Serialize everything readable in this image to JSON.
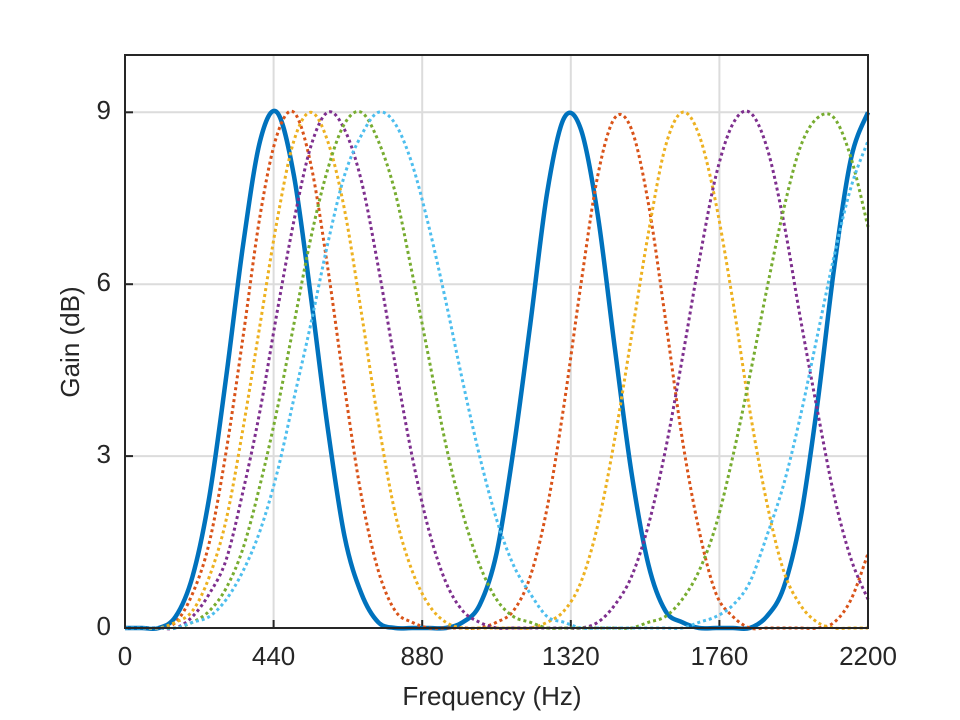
{
  "chart_data": {
    "type": "line",
    "x_label": "Frequency (Hz)",
    "y_label": "Gain (dB)",
    "xlim": [
      0,
      2200
    ],
    "ylim": [
      0,
      10
    ],
    "xticks": [
      0,
      440,
      880,
      1320,
      1760,
      2200
    ],
    "yticks": [
      0,
      3,
      6,
      9
    ],
    "grid": true,
    "x": [
      0,
      50,
      100,
      150,
      200,
      250,
      300,
      350,
      400,
      450,
      500,
      550,
      600,
      650,
      700,
      750,
      800,
      850,
      900,
      950,
      1000,
      1050,
      1100,
      1150,
      1200,
      1250,
      1300,
      1350,
      1400,
      1450,
      1500,
      1550,
      1600,
      1650,
      1700,
      1750,
      1800,
      1850,
      1900,
      1950,
      2000,
      2050,
      2100,
      2150,
      2200
    ],
    "series": [
      {
        "color": "#0072BD",
        "style": "solid",
        "values": [
          0,
          0,
          0,
          0.2,
          0.9,
          2.3,
          4.4,
          6.7,
          8.5,
          9.0,
          7.9,
          5.8,
          3.5,
          1.6,
          0.6,
          0.1,
          0,
          0,
          0,
          0,
          0.1,
          0.4,
          1.3,
          3.1,
          5.3,
          7.6,
          8.9,
          8.7,
          7.2,
          4.9,
          2.7,
          1.1,
          0.3,
          0.1,
          0,
          0,
          0,
          0,
          0.2,
          0.7,
          1.9,
          3.9,
          6.3,
          8.2,
          9.0
        ]
      },
      {
        "color": "#D95319",
        "style": "dotted",
        "values": [
          0,
          0,
          0,
          0.1,
          0.6,
          1.5,
          3.1,
          5.1,
          7.2,
          8.6,
          9.0,
          8.1,
          6.3,
          4.2,
          2.3,
          1.0,
          0.3,
          0.1,
          0,
          0,
          0,
          0,
          0.1,
          0.3,
          0.9,
          2.1,
          3.9,
          6.0,
          7.9,
          8.9,
          8.7,
          7.4,
          5.4,
          3.3,
          1.7,
          0.6,
          0.2,
          0,
          0,
          0,
          0,
          0,
          0.1,
          0.5,
          1.3
        ]
      },
      {
        "color": "#EDB120",
        "style": "dotted",
        "values": [
          0,
          0,
          0,
          0.1,
          0.3,
          0.9,
          1.9,
          3.5,
          5.3,
          7.1,
          8.5,
          9.0,
          8.5,
          7.3,
          5.5,
          3.6,
          2.0,
          1.0,
          0.4,
          0.1,
          0,
          0,
          0,
          0,
          0,
          0.1,
          0.3,
          0.8,
          1.8,
          3.3,
          5.1,
          6.9,
          8.4,
          9.0,
          8.6,
          7.4,
          5.7,
          3.8,
          2.2,
          1.0,
          0.4,
          0.1,
          0,
          0,
          0
        ]
      },
      {
        "color": "#7E2F8E",
        "style": "dotted",
        "values": [
          0,
          0,
          0,
          0,
          0.2,
          0.6,
          1.2,
          2.4,
          3.8,
          5.5,
          7.1,
          8.4,
          9.0,
          8.7,
          7.8,
          6.3,
          4.6,
          3.0,
          1.7,
          0.8,
          0.3,
          0.1,
          0,
          0,
          0,
          0,
          0,
          0,
          0.1,
          0.4,
          0.9,
          1.8,
          3.1,
          4.7,
          6.4,
          7.9,
          8.8,
          9.0,
          8.4,
          7.1,
          5.4,
          3.8,
          2.3,
          1.2,
          0.5
        ]
      },
      {
        "color": "#77AC30",
        "style": "dotted",
        "values": [
          0,
          0,
          0,
          0,
          0.1,
          0.3,
          0.7,
          1.4,
          2.5,
          3.8,
          5.3,
          6.8,
          8.0,
          8.8,
          9.0,
          8.5,
          7.6,
          6.2,
          4.7,
          3.2,
          2.0,
          1.1,
          0.5,
          0.2,
          0.1,
          0,
          0,
          0,
          0,
          0,
          0,
          0.1,
          0.2,
          0.5,
          1.0,
          1.8,
          3.0,
          4.4,
          5.9,
          7.3,
          8.4,
          8.9,
          8.9,
          8.2,
          7.0
        ]
      },
      {
        "color": "#4DBEEE",
        "style": "dotted",
        "values": [
          0,
          0,
          0,
          0,
          0.1,
          0.2,
          0.5,
          1.0,
          1.7,
          2.7,
          4.0,
          5.3,
          6.7,
          7.9,
          8.6,
          9.0,
          8.8,
          8.1,
          7.0,
          5.7,
          4.3,
          3.0,
          1.9,
          1.1,
          0.6,
          0.2,
          0.1,
          0,
          0,
          0,
          0,
          0,
          0,
          0,
          0.1,
          0.2,
          0.4,
          0.8,
          1.6,
          2.5,
          3.7,
          5.1,
          6.5,
          7.7,
          8.5
        ]
      }
    ]
  }
}
